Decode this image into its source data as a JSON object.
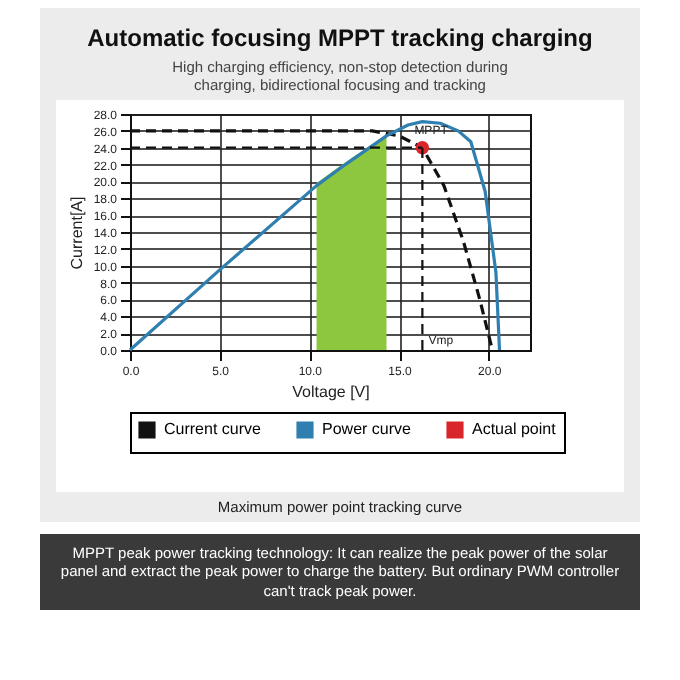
{
  "chart_data": {
    "type": "line",
    "title": "Automatic focusing MPPT tracking charging",
    "subtitle": "High charging efficiency, non-stop detection during charging, bidirectional focusing and tracking",
    "xlabel": "Voltage [V]",
    "ylabel": "Current[A]",
    "series": [
      {
        "type": "area",
        "color": "#8dc63f",
        "x": [
          10.4,
          11.5,
          12.5,
          13.5,
          14.3
        ],
        "values": [
          19.8,
          21.5,
          23.0,
          24.3,
          25.4
        ]
      },
      {
        "name": "Current curve",
        "color": "#111111",
        "line_style": "dashed",
        "x": [
          0,
          5,
          10,
          13.5,
          15,
          16.3,
          17.5,
          18.6,
          19.5,
          20.2
        ],
        "values": [
          26,
          26,
          26,
          26,
          25.4,
          24,
          19.5,
          12.8,
          6,
          0
        ]
      },
      {
        "name": "Power curve",
        "color": "#2f7fb0",
        "line_style": "solid",
        "x": [
          0,
          5,
          10.4,
          12,
          14.3,
          15.5,
          16.3,
          17.3,
          18.3,
          19.0,
          19.8,
          20.4,
          20.6
        ],
        "values": [
          0,
          9.5,
          19.5,
          22.0,
          25.4,
          26.7,
          27.1,
          26.9,
          26.0,
          24.7,
          18.8,
          9.2,
          0
        ]
      },
      {
        "name": "Actual point",
        "type": "scatter",
        "marker": "circle",
        "color": "#d9262c",
        "x": [
          16.3
        ],
        "values": [
          24
        ]
      }
    ],
    "xlim": [
      0,
      22.3
    ],
    "ylim": [
      0,
      28
    ],
    "xticks": [
      {
        "value": 0,
        "label": "0.0"
      },
      {
        "value": 5,
        "label": "5.0"
      },
      {
        "value": 10,
        "label": "10.0"
      },
      {
        "value": 15,
        "label": "15.0"
      },
      {
        "value": 20,
        "label": "20.0"
      }
    ],
    "yticks": [
      {
        "value": 0,
        "label": "0.0"
      },
      {
        "value": 2,
        "label": "2.0"
      },
      {
        "value": 4,
        "label": "4.0"
      },
      {
        "value": 6,
        "label": "6.0"
      },
      {
        "value": 8,
        "label": "8.0"
      },
      {
        "value": 10,
        "label": "10.0"
      },
      {
        "value": 12,
        "label": "12.0"
      },
      {
        "value": 14,
        "label": "14.0"
      },
      {
        "value": 16,
        "label": "16.0"
      },
      {
        "value": 18,
        "label": "18.0"
      },
      {
        "value": 20,
        "label": "20.0"
      },
      {
        "value": 22,
        "label": "22.0"
      },
      {
        "value": 24,
        "label": "24.0"
      },
      {
        "value": 26,
        "label": "26.0"
      },
      {
        "value": 28,
        "label": "28.0"
      }
    ],
    "ref_lines": [
      {
        "axis": "y",
        "value": 24,
        "line_style": "dashed"
      },
      {
        "axis": "x",
        "value": 16.3,
        "line_style": "dashed"
      }
    ],
    "annotations": [
      {
        "text": "MPPT",
        "x": 16.3,
        "y": 24
      },
      {
        "text": "Vmp",
        "x": 16.3,
        "y": 0
      },
      "Maximum power point tracking curve",
      "MPPT peak power tracking technology: It can realize the peak power of the solar panel and extract the peak power to charge the battery. But ordinary PWM controller can't track peak power."
    ],
    "grid": true,
    "legend": "bottom",
    "marker": "none"
  }
}
